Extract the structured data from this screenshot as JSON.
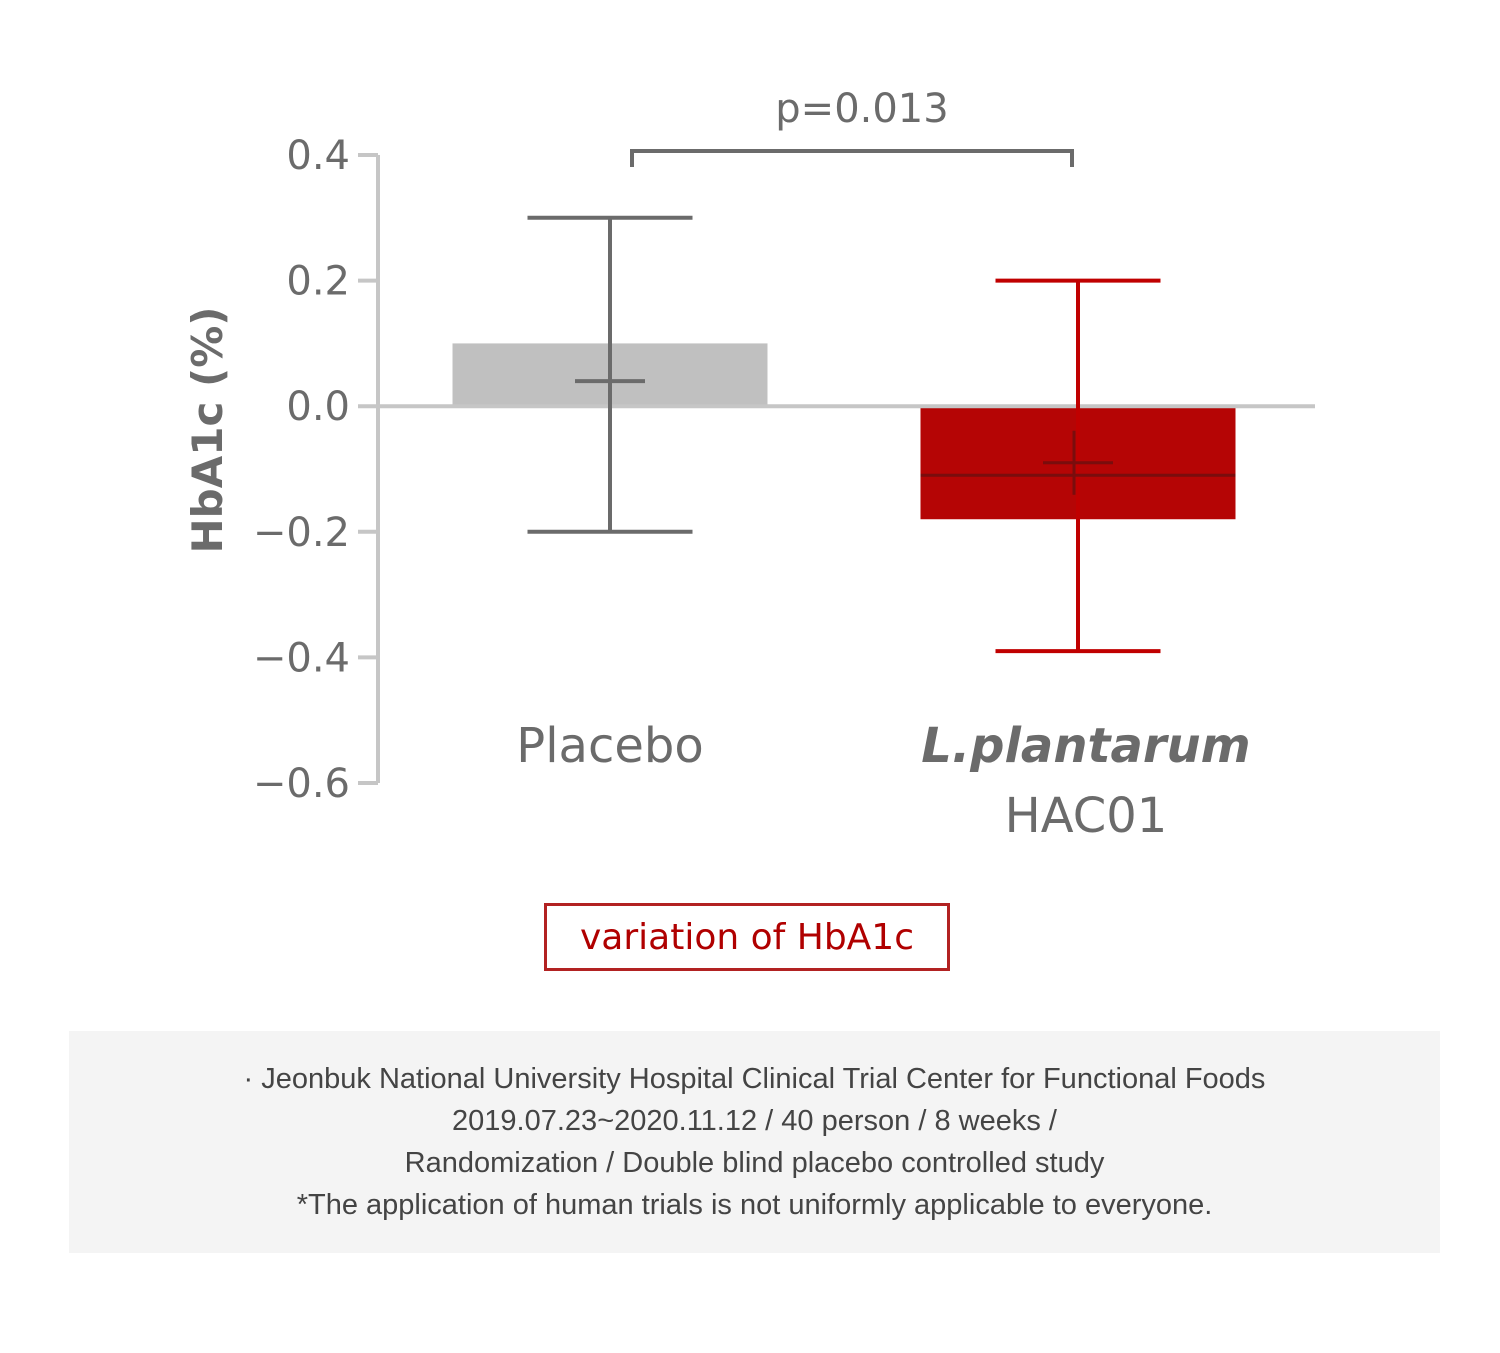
{
  "chart_data": {
    "type": "bar",
    "categories": [
      "Placebo",
      "L.plantarum HAC01"
    ],
    "category_lines": [
      [
        "Placebo"
      ],
      [
        "L.plantarum",
        "HAC01"
      ]
    ],
    "series": [
      {
        "values": [
          0.1,
          -0.18
        ],
        "median": [
          0.04,
          -0.11
        ],
        "mean": [
          0.04,
          -0.09
        ],
        "whisker_high": [
          0.3,
          0.2
        ],
        "whisker_low": [
          -0.2,
          -0.39
        ]
      }
    ],
    "colors": [
      "#c0c0c0",
      "#b50505"
    ],
    "whisker_colors": [
      "#6b6b6b",
      "#c00000"
    ],
    "ylabel": "HbA1c (%)",
    "ylim": [
      -0.6,
      0.4
    ],
    "yticks": [
      0.4,
      0.2,
      0.0,
      -0.2,
      -0.4,
      -0.6
    ],
    "ytick_labels": [
      "0.4",
      "0.2",
      "0.0",
      "−0.2",
      "−0.4",
      "−0.6"
    ],
    "annotations": [
      "p=0.013"
    ],
    "grid": false,
    "legend": "none"
  },
  "caption": "variation of HbA1c",
  "footnote": {
    "lines": [
      "· Jeonbuk National University Hospital Clinical Trial Center for Functional Foods",
      "2019.07.23~2020.11.12 / 40 person / 8 weeks /",
      "Randomization / Double blind placebo controlled study",
      "*The application of human trials is not uniformly applicable to everyone."
    ]
  }
}
